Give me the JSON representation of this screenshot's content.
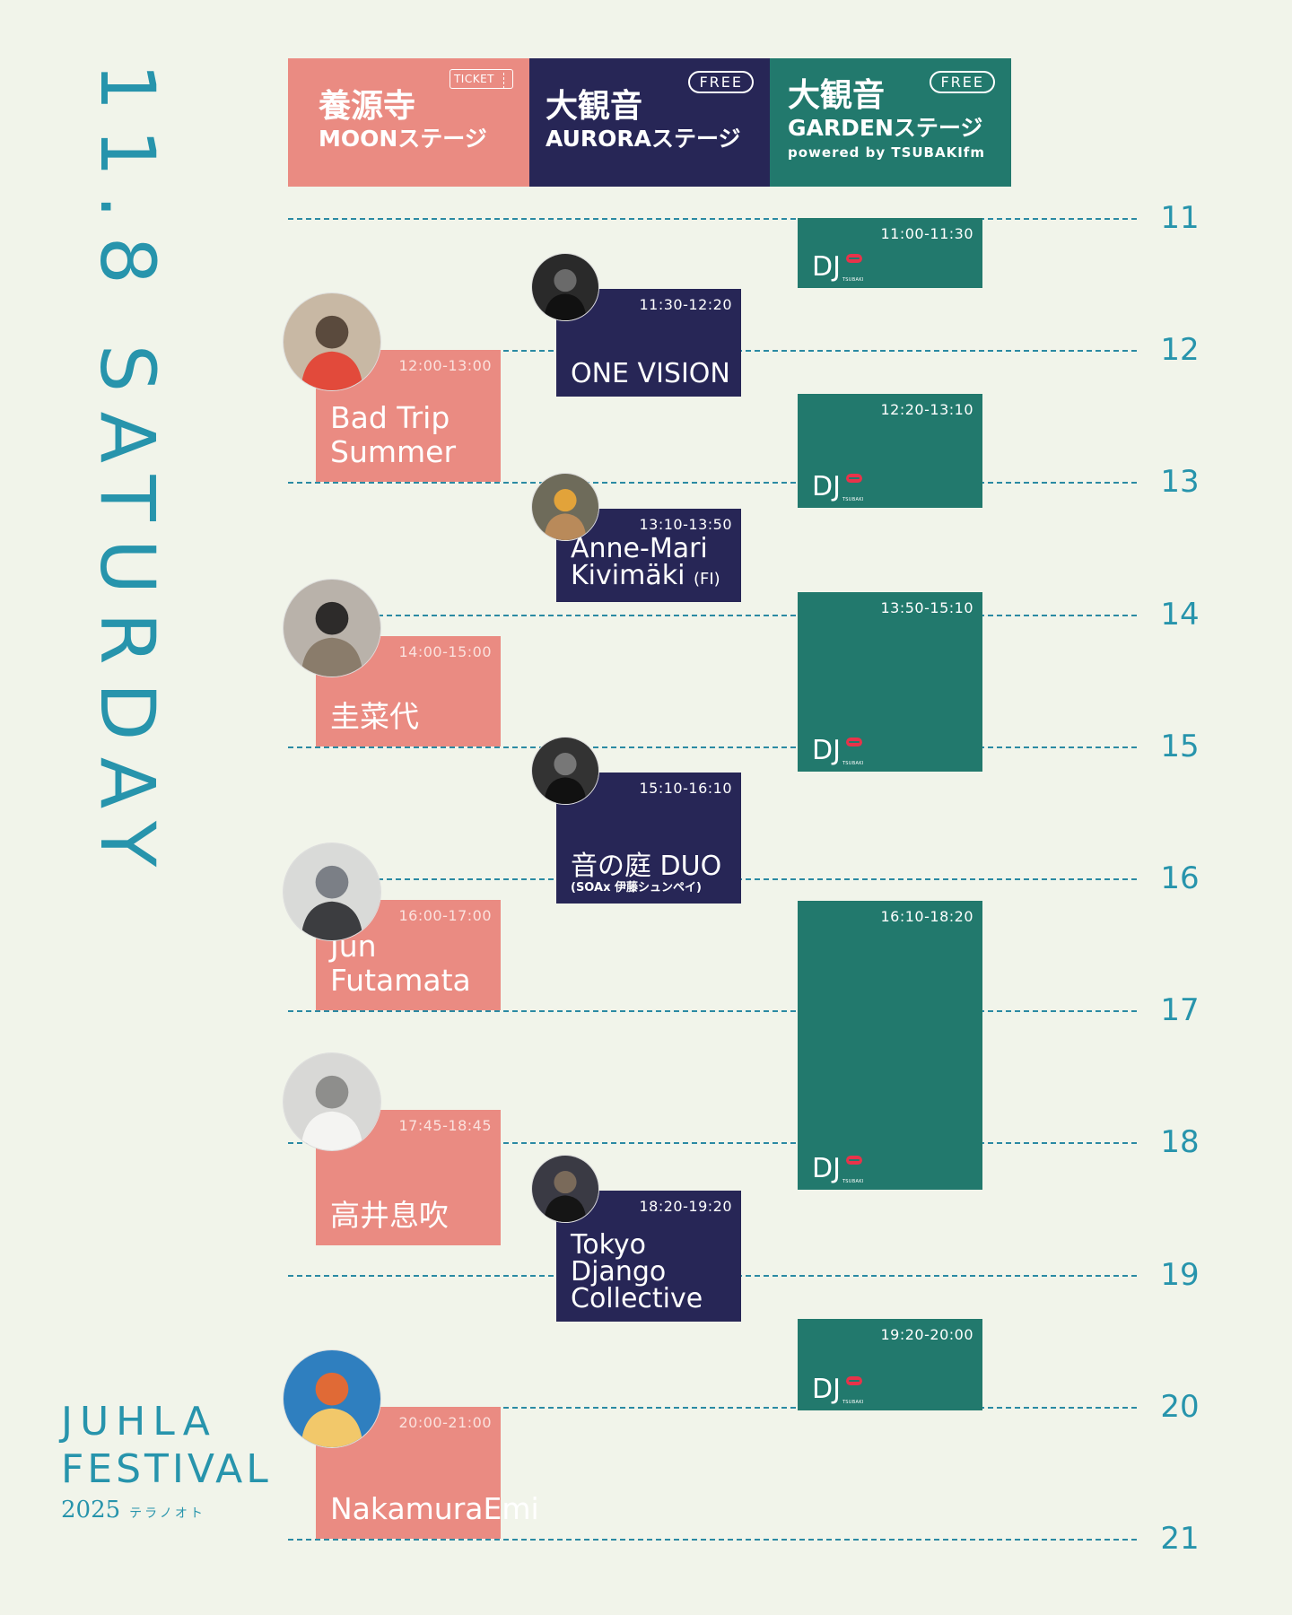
{
  "date_title": "11.8 SATURDAY",
  "stages": {
    "moon": {
      "name": "養源寺",
      "sub": "MOONステージ",
      "badge": "TICKET"
    },
    "aurora": {
      "name": "大観音",
      "sub": "AURORAステージ",
      "badge": "FREE"
    },
    "garden": {
      "name": "大観音",
      "sub": "GARDENステージ",
      "powered": "powered by TSUBAKIfm",
      "badge": "FREE"
    }
  },
  "hours": [
    "11",
    "12",
    "13",
    "14",
    "15",
    "16",
    "17",
    "18",
    "19",
    "20",
    "21"
  ],
  "moon_acts": [
    {
      "time": "12:00-13:00",
      "name": "Bad Trip Summer"
    },
    {
      "time": "14:00-15:00",
      "name": "圭菜代"
    },
    {
      "time": "16:00-17:00",
      "name": "Jun Futamata"
    },
    {
      "time": "17:45-18:45",
      "name": "高井息吹"
    },
    {
      "time": "20:00-21:00",
      "name": "NakamuraEmi"
    }
  ],
  "aurora_acts": [
    {
      "time": "11:30-12:20",
      "name": "ONE VISION"
    },
    {
      "time": "13:10-13:50",
      "name": "Anne-Mari Kivimäki",
      "suffix": "(FI)"
    },
    {
      "time": "15:10-16:10",
      "name": "音の庭 DUO",
      "sub": "(SOAx 伊藤シュンペイ)"
    },
    {
      "time": "18:20-19:20",
      "name": "Tokyo Django Collective"
    }
  ],
  "garden_acts": [
    {
      "time": "11:00-11:30",
      "name": "DJ"
    },
    {
      "time": "12:20-13:10",
      "name": "DJ"
    },
    {
      "time": "13:50-15:10",
      "name": "DJ"
    },
    {
      "time": "16:10-18:20",
      "name": "DJ"
    },
    {
      "time": "19:20-20:00",
      "name": "DJ"
    }
  ],
  "dj_logo_text": "TSUBAKI",
  "festival_logo": {
    "line1": "JUHLA",
    "line2": "FESTIVAL",
    "year": "2025",
    "jp": "テラノオト"
  },
  "colors": {
    "moon": "#ea8b82",
    "aurora": "#272656",
    "garden": "#22796d",
    "accent": "#2794ac",
    "background": "#f1f4ea"
  }
}
